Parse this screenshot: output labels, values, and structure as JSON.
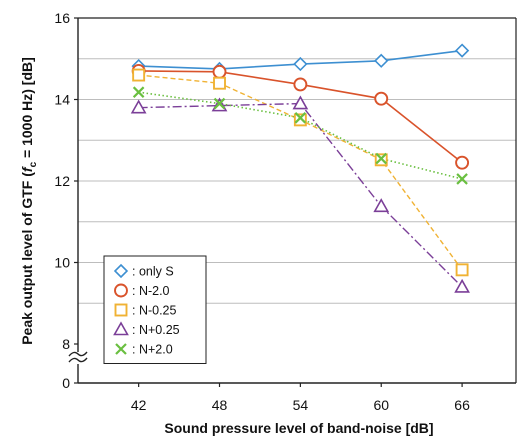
{
  "chart_data": {
    "type": "line",
    "xlabel": "Sound pressure level of band-noise [dB]",
    "ylabel_parts": {
      "prefix": "Peak output level of GTF (",
      "f": "f",
      "sub": "c",
      "suffix": " = 1000 Hz) [dB]"
    },
    "x": [
      42,
      48,
      54,
      60,
      66
    ],
    "xlim": [
      37.5,
      70
    ],
    "ylim": [
      8,
      16
    ],
    "yticks": [
      16,
      14,
      12,
      10,
      8
    ],
    "y_break_label": "0",
    "grid": "horizontal",
    "legend_position": "bottom-left",
    "series": [
      {
        "name": ": only S",
        "marker": "diamond",
        "color": "#3d8fd1",
        "dash": "",
        "width": 1.6,
        "values": [
          14.82,
          14.75,
          14.87,
          14.95,
          15.2
        ]
      },
      {
        "name": ": N-2.0",
        "marker": "circle",
        "color": "#d9532b",
        "dash": "",
        "width": 1.6,
        "values": [
          14.7,
          14.68,
          14.37,
          14.02,
          12.45
        ]
      },
      {
        "name": ": N-0.25",
        "marker": "square",
        "color": "#f0b233",
        "dash": "5,3",
        "width": 1.4,
        "values": [
          14.6,
          14.4,
          13.5,
          12.52,
          9.82
        ]
      },
      {
        "name": ": N+0.25",
        "marker": "triangle",
        "color": "#7b3f98",
        "dash": "9,3,2,3",
        "width": 1.4,
        "values": [
          13.8,
          13.85,
          13.9,
          11.38,
          9.4
        ]
      },
      {
        "name": ": N+2.0",
        "marker": "x",
        "color": "#6abf40",
        "dash": "1.5,2.5",
        "width": 1.6,
        "values": [
          14.18,
          13.9,
          13.55,
          12.55,
          12.05
        ]
      }
    ]
  }
}
